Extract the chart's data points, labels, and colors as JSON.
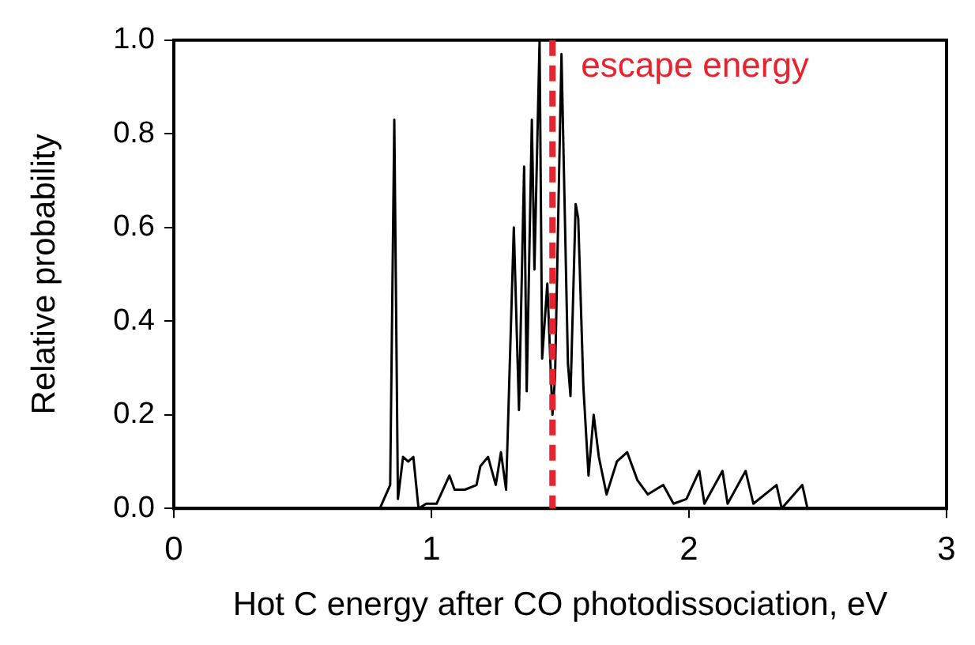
{
  "chart_data": {
    "type": "line",
    "xlabel": "Hot C energy after CO photodissociation, eV",
    "ylabel": "Relative probability",
    "xlim": [
      0,
      3
    ],
    "xticks": [
      0,
      1,
      2,
      3
    ],
    "ylim": [
      0,
      1
    ],
    "yticks": [
      {
        "value": 0,
        "label": "0.0"
      },
      {
        "value": 0.2,
        "label": "0.2"
      },
      {
        "value": 0.4,
        "label": "0.4"
      },
      {
        "value": 0.6,
        "label": "0.6"
      },
      {
        "value": 0.8,
        "label": "0.8"
      },
      {
        "value": 1,
        "label": "1.0"
      }
    ],
    "grid": false,
    "legend": false,
    "marker": "none",
    "line_style": "solid",
    "series": [
      {
        "color": "#000000",
        "x": [
          0.7,
          0.8,
          0.84,
          0.856,
          0.87,
          0.89,
          0.91,
          0.93,
          0.95,
          0.98,
          1.02,
          1.07,
          1.09,
          1.13,
          1.175,
          1.19,
          1.22,
          1.25,
          1.27,
          1.29,
          1.32,
          1.34,
          1.36,
          1.37,
          1.39,
          1.4,
          1.42,
          1.43,
          1.45,
          1.47,
          1.48,
          1.505,
          1.53,
          1.54,
          1.56,
          1.57,
          1.59,
          1.61,
          1.63,
          1.65,
          1.68,
          1.72,
          1.76,
          1.8,
          1.84,
          1.9,
          1.94,
          1.99,
          2.04,
          2.06,
          2.13,
          2.15,
          2.22,
          2.25,
          2.34,
          2.36,
          2.44,
          2.46,
          2.52,
          2.6
        ],
        "values": [
          0,
          0,
          0.05,
          0.83,
          0.02,
          0.11,
          0.1,
          0.11,
          0,
          0.01,
          0.01,
          0.07,
          0.04,
          0.04,
          0.05,
          0.09,
          0.11,
          0.05,
          0.12,
          0.04,
          0.6,
          0.21,
          0.73,
          0.25,
          0.83,
          0.51,
          1.0,
          0.32,
          0.48,
          0.2,
          0.28,
          0.97,
          0.31,
          0.24,
          0.65,
          0.62,
          0.26,
          0.07,
          0.2,
          0.11,
          0.03,
          0.1,
          0.12,
          0.06,
          0.03,
          0.05,
          0.01,
          0.02,
          0.08,
          0.01,
          0.08,
          0.01,
          0.08,
          0.01,
          0.05,
          0,
          0.05,
          0,
          0,
          0
        ]
      }
    ],
    "ref_lines": [
      {
        "axis": "x",
        "value": 1.47,
        "label": "escape energy",
        "color": "#e8222e",
        "line_style": "dashed"
      }
    ]
  }
}
